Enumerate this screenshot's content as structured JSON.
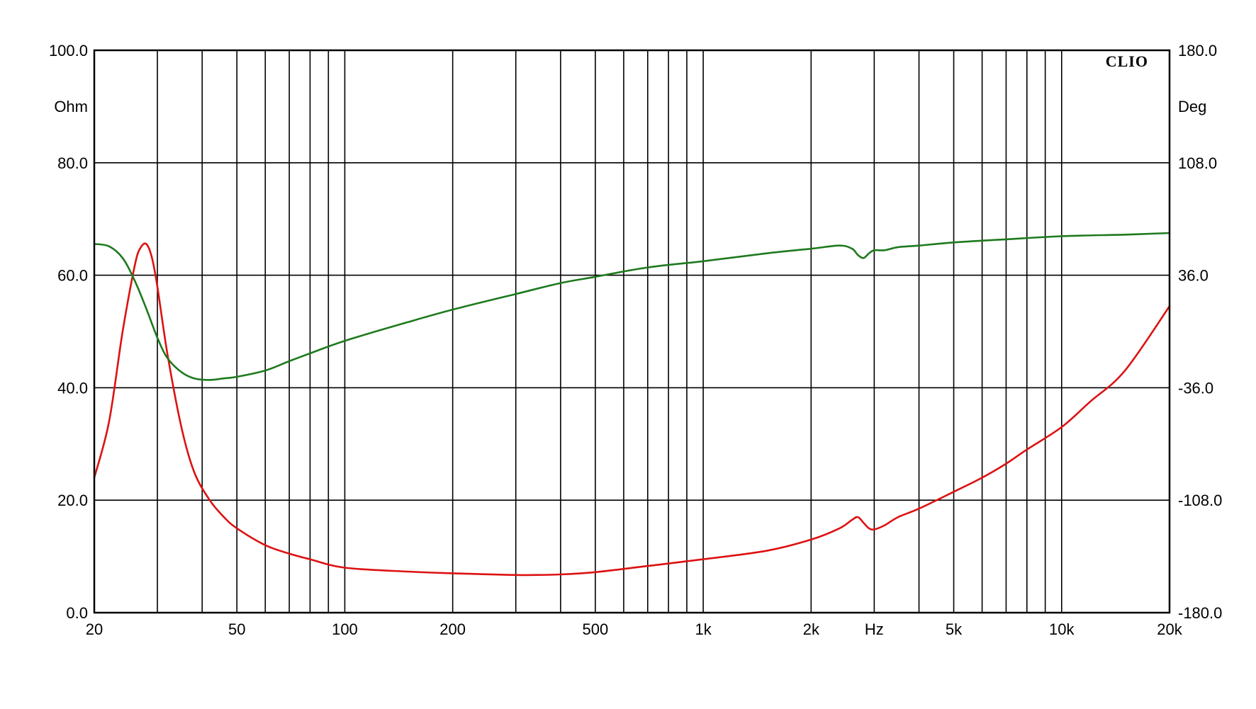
{
  "chart_data": {
    "type": "line",
    "brand": "CLIO",
    "x_scale": "log",
    "xlim": [
      20,
      20000
    ],
    "ylim_left": [
      0,
      100
    ],
    "ylim_right": [
      -180,
      180
    ],
    "grid": true,
    "x_ticks": [
      "20",
      "50",
      "100",
      "200",
      "500",
      "1k",
      "2k",
      "5k",
      "10k",
      "20k"
    ],
    "x_tick_values": [
      20,
      50,
      100,
      200,
      500,
      1000,
      2000,
      5000,
      10000,
      20000
    ],
    "xlabel": "Hz",
    "xlabel_freq": 3000,
    "ylabel_left": "Ohm",
    "ylabel_right": "Deg",
    "y_left_ticks": [
      "100.0",
      "80.0",
      "60.0",
      "40.0",
      "20.0",
      "0.0"
    ],
    "y_left_tick_values": [
      100,
      80,
      60,
      40,
      20,
      0
    ],
    "y_right_ticks": [
      "180.0",
      "108.0",
      "36.0",
      "-36.0",
      "-108.0",
      "-180.0"
    ],
    "y_right_tick_values": [
      180,
      108,
      36,
      -36,
      -108,
      -180
    ],
    "colors": {
      "grid": "#000000",
      "series_impedance": "#dd1111",
      "series_phase": "#1e7a1e"
    },
    "series": [
      {
        "axis": "left",
        "color": "#dd1111",
        "x": [
          20,
          22,
          24,
          26,
          27,
          28,
          29,
          30,
          32,
          35,
          38,
          42,
          46,
          50,
          60,
          70,
          80,
          100,
          150,
          200,
          300,
          400,
          500,
          700,
          1000,
          1500,
          2000,
          2400,
          2600,
          2700,
          2800,
          2900,
          3000,
          3200,
          3500,
          4000,
          5000,
          6000,
          7000,
          8000,
          10000,
          12000,
          15000,
          20000
        ],
        "values": [
          24,
          34,
          50,
          62,
          65,
          65.5,
          63,
          58,
          46,
          33,
          25,
          20,
          17,
          15,
          12,
          10.5,
          9.5,
          8,
          7.3,
          7,
          6.7,
          6.8,
          7.2,
          8.3,
          9.5,
          11,
          13,
          15,
          16.5,
          17,
          16,
          15,
          14.8,
          15.5,
          17,
          18.5,
          21.5,
          24,
          26.5,
          29,
          33,
          37.5,
          43,
          54.5
        ]
      },
      {
        "axis": "right",
        "color": "#1e7a1e",
        "x": [
          20,
          22,
          24,
          26,
          28,
          30,
          32,
          35,
          38,
          42,
          46,
          50,
          60,
          70,
          80,
          100,
          150,
          200,
          300,
          400,
          500,
          700,
          1000,
          1500,
          2000,
          2400,
          2600,
          2700,
          2800,
          2900,
          3000,
          3200,
          3500,
          4000,
          5000,
          7000,
          10000,
          15000,
          20000
        ],
        "values": [
          56,
          54.5,
          47,
          32,
          14,
          -4,
          -17,
          -26,
          -30,
          -31,
          -30,
          -29,
          -25,
          -19,
          -14,
          -6,
          6,
          14,
          24,
          31,
          35,
          41,
          45,
          50,
          53,
          55,
          53,
          49,
          47,
          50,
          52,
          52,
          54,
          55,
          57,
          59,
          61,
          62,
          63
        ]
      }
    ]
  }
}
